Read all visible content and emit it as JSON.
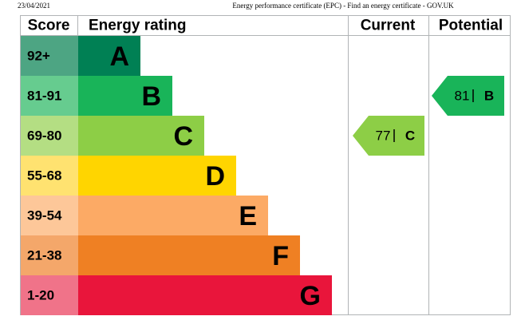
{
  "header": {
    "date": "23/04/2021",
    "title": "Energy performance certificate (EPC) - Find an energy certificate - GOV.UK"
  },
  "table": {
    "columns": [
      "Score",
      "Energy rating",
      "Current",
      "Potential"
    ],
    "bands": [
      {
        "score": "92+",
        "letter": "A",
        "color": "#008054",
        "light": "#4da583"
      },
      {
        "score": "81-91",
        "letter": "B",
        "color": "#19b459",
        "light": "#66cc8f"
      },
      {
        "score": "69-80",
        "letter": "C",
        "color": "#8dce46",
        "light": "#b4de83"
      },
      {
        "score": "55-68",
        "letter": "D",
        "color": "#ffd500",
        "light": "#ffe270"
      },
      {
        "score": "39-54",
        "letter": "E",
        "color": "#fcaa65",
        "light": "#fdc799"
      },
      {
        "score": "21-38",
        "letter": "F",
        "color": "#ef8023",
        "light": "#f4a76a"
      },
      {
        "score": "1-20",
        "letter": "G",
        "color": "#e9153b",
        "light": "#f07389"
      }
    ]
  },
  "current": {
    "value": 77,
    "letter": "C",
    "color": "#8dce46"
  },
  "potential": {
    "value": 81,
    "letter": "B",
    "color": "#19b459"
  }
}
